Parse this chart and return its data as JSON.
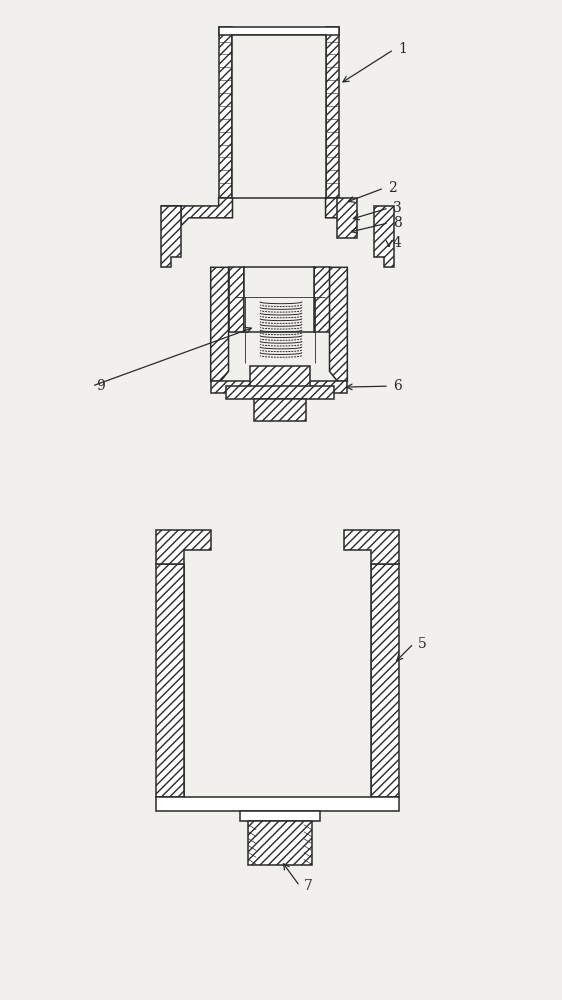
{
  "bg_color": "#f2f0ec",
  "line_color": "#2a2a2a",
  "figsize": [
    5.62,
    10.0
  ],
  "dpi": 100,
  "lw_main": 1.1,
  "lw_thin": 0.6,
  "label_fs": 10
}
